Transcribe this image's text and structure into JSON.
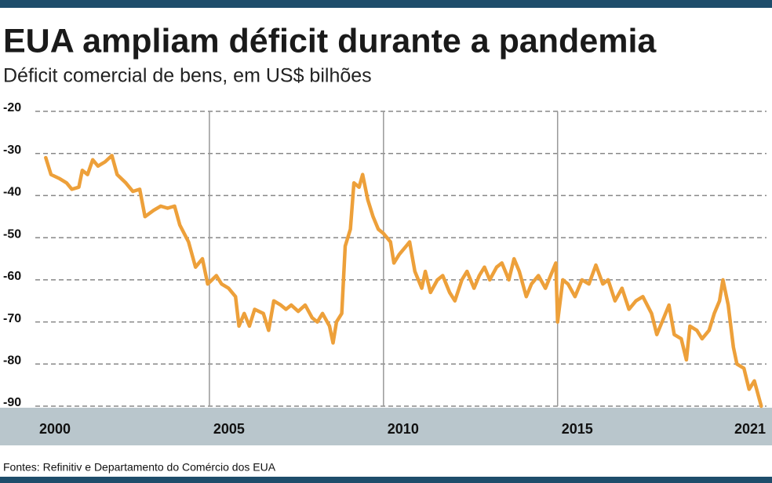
{
  "chart_data": {
    "type": "line",
    "title": "EUA ampliam déficit durante a pandemia",
    "subtitle": "Déficit comercial de bens, em US$ bilhões",
    "source": "Fontes: Refinitiv e Departamento do Comércio dos EUA",
    "xlim": [
      2000,
      2021
    ],
    "xticks": [
      2000,
      2005,
      2010,
      2015,
      2021
    ],
    "ylim": [
      -90,
      -20
    ],
    "yticks": [
      -20,
      -30,
      -40,
      -50,
      -60,
      -70,
      -80,
      -90
    ],
    "grid": true,
    "series": [
      {
        "color": "#eda03a",
        "x": [
          2000.3,
          2000.45,
          2000.7,
          2000.9,
          2001.05,
          2001.25,
          2001.35,
          2001.5,
          2001.65,
          2001.8,
          2002.0,
          2002.2,
          2002.35,
          2002.6,
          2002.8,
          2003.0,
          2003.15,
          2003.4,
          2003.6,
          2003.8,
          2004.0,
          2004.15,
          2004.4,
          2004.6,
          2004.8,
          2004.95,
          2005.2,
          2005.35,
          2005.55,
          2005.75,
          2005.85,
          2006.0,
          2006.15,
          2006.3,
          2006.55,
          2006.7,
          2006.85,
          2007.05,
          2007.2,
          2007.35,
          2007.55,
          2007.75,
          2007.95,
          2008.1,
          2008.25,
          2008.45,
          2008.55,
          2008.65,
          2008.8,
          2008.9,
          2009.05,
          2009.15,
          2009.3,
          2009.4,
          2009.55,
          2009.7,
          2009.85,
          2010.0,
          2010.2,
          2010.3,
          2010.45,
          2010.65,
          2010.75,
          2010.9,
          2011.1,
          2011.2,
          2011.35,
          2011.55,
          2011.7,
          2011.9,
          2012.05,
          2012.25,
          2012.4,
          2012.6,
          2012.75,
          2012.9,
          2013.05,
          2013.25,
          2013.4,
          2013.6,
          2013.75,
          2013.9,
          2014.1,
          2014.25,
          2014.45,
          2014.65,
          2014.8,
          2014.95,
          2015.0,
          2015.15,
          2015.3,
          2015.5,
          2015.7,
          2015.9,
          2016.1,
          2016.3,
          2016.45,
          2016.65,
          2016.85,
          2017.05,
          2017.25,
          2017.45,
          2017.7,
          2017.85,
          2018.05,
          2018.2,
          2018.35,
          2018.55,
          2018.7,
          2018.8,
          2019.0,
          2019.15,
          2019.35,
          2019.5,
          2019.65,
          2019.75,
          2019.9,
          2020.05,
          2020.15,
          2020.35,
          2020.5,
          2020.65,
          2020.85
        ],
        "values": [
          -31,
          -35,
          -36,
          -37,
          -38.5,
          -38,
          -34,
          -35,
          -31.5,
          -33,
          -32,
          -30.5,
          -35,
          -37,
          -39,
          -38.5,
          -45,
          -43.5,
          -42.5,
          -43,
          -42.5,
          -47,
          -51,
          -57,
          -55,
          -61,
          -59,
          -61,
          -62,
          -64,
          -71,
          -68,
          -71,
          -67,
          -68,
          -72,
          -65,
          -66,
          -67,
          -66,
          -67.5,
          -66,
          -69,
          -70,
          -68,
          -71,
          -75,
          -70,
          -68,
          -52,
          -48,
          -37,
          -38,
          -35,
          -41,
          -45,
          -48,
          -49,
          -51,
          -56,
          -54,
          -52,
          -51,
          -58,
          -62,
          -58,
          -63,
          -60,
          -59,
          -63,
          -65,
          -60,
          -58,
          -62,
          -59,
          -57,
          -60,
          -57,
          -56,
          -60,
          -55,
          -58,
          -64,
          -61,
          -59,
          -62,
          -59,
          -56,
          -70,
          -60,
          -61,
          -64,
          -60,
          -61,
          -56.5,
          -61,
          -60,
          -65,
          -62,
          -67,
          -65,
          -64,
          -68,
          -73,
          -69,
          -66,
          -73,
          -74,
          -79,
          -71,
          -72,
          -74,
          -72,
          -68,
          -65,
          -60,
          -66,
          -76,
          -80,
          -81,
          -86,
          -84,
          -90
        ]
      }
    ]
  }
}
